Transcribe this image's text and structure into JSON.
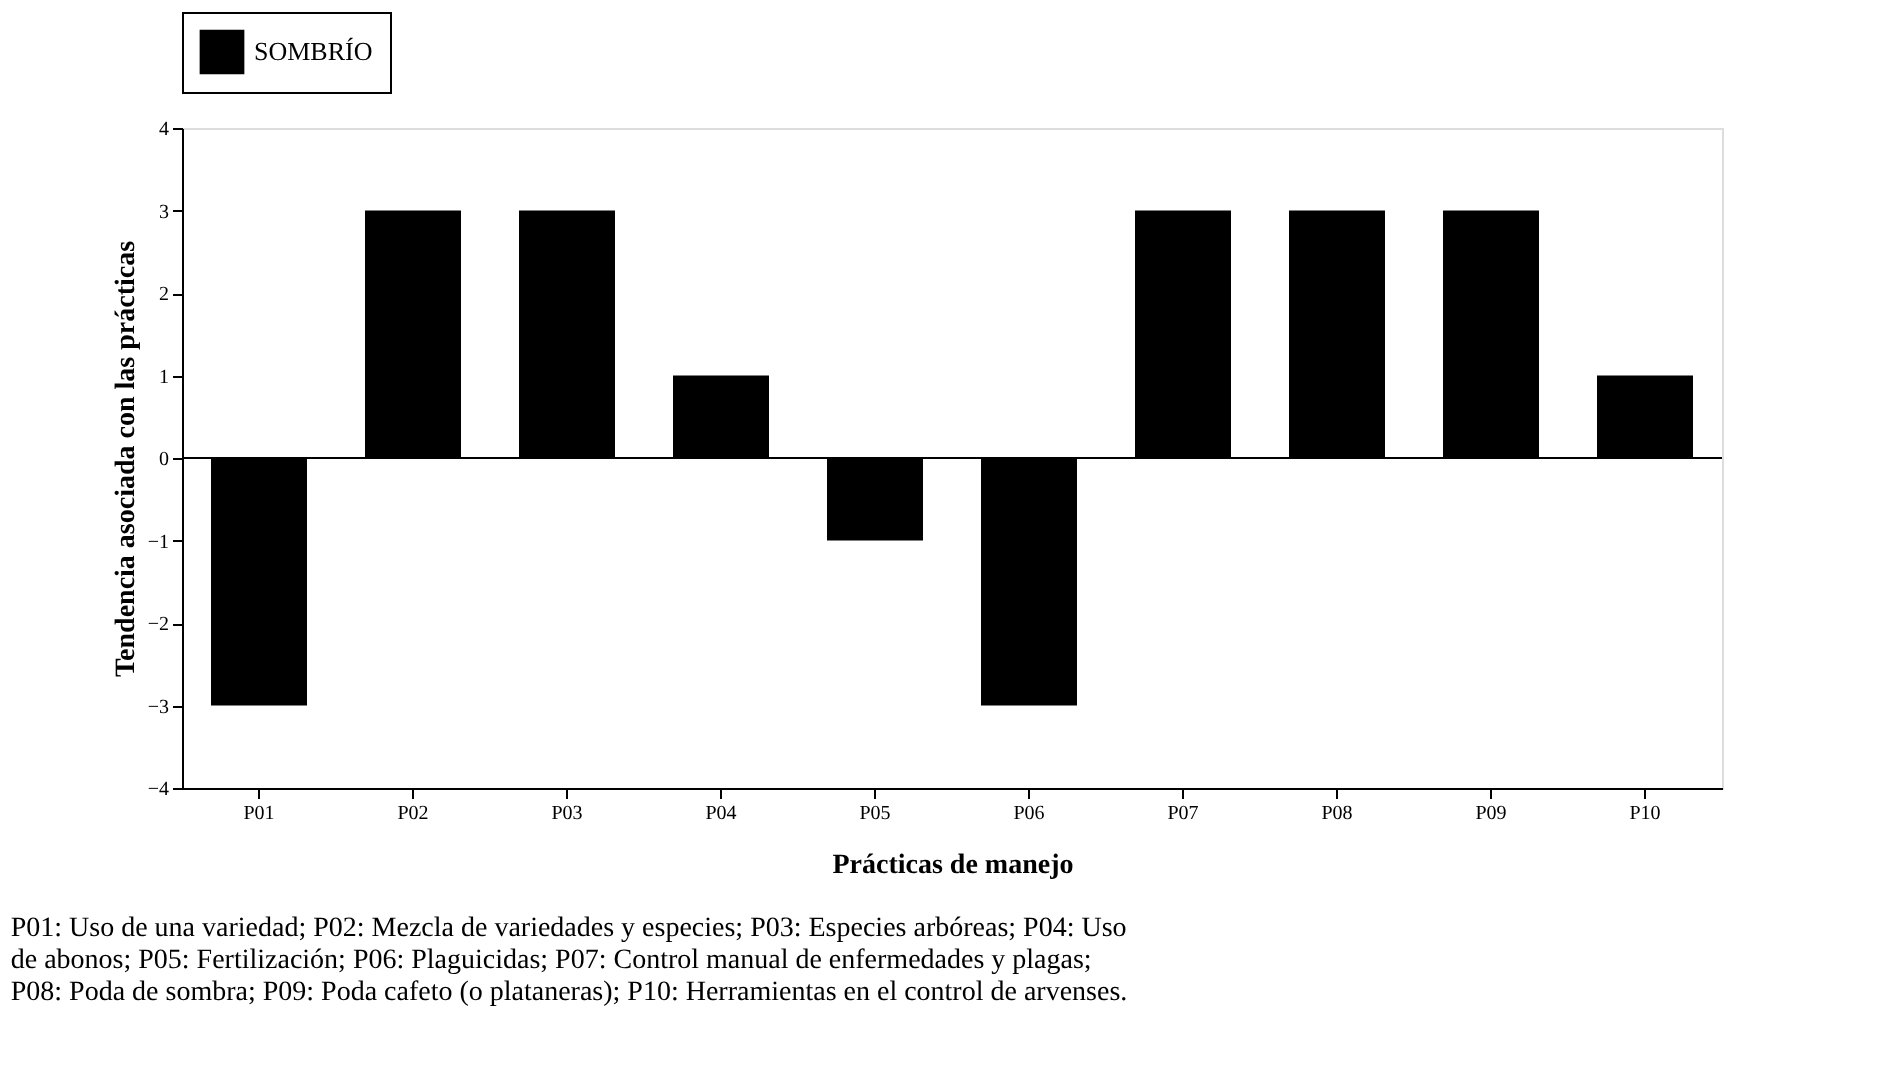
{
  "chart_data": {
    "type": "bar",
    "xlabel": "Prácticas de manejo",
    "ylabel": "Tendencia asociada con las prácticas",
    "categories": [
      "P01",
      "P02",
      "P03",
      "P04",
      "P05",
      "P06",
      "P07",
      "P08",
      "P09",
      "P10"
    ],
    "series": [
      {
        "name": "SOMBRÍO",
        "color": "#000000",
        "values": [
          -3,
          3,
          3,
          1,
          -1,
          -3,
          3,
          3,
          3,
          1
        ]
      }
    ],
    "ylim": [
      -4,
      4
    ],
    "yticks": [
      -4,
      -3,
      -2,
      -1,
      0,
      1,
      2,
      3,
      4
    ],
    "grid": false,
    "legend": "top",
    "ref_lines": [
      {
        "axis": "y",
        "value": 0,
        "color": "#000000"
      }
    ],
    "annotations": [
      "P01: Uso de una variedad; P02: Mezcla de variedades y especies; P03: Especies arbóreas; P04: Uso",
      "de abonos; P05: Fertilización; P06: Plaguicidas; P07: Control manual de enfermedades y plagas;",
      "P08: Poda de sombra; P09: Poda cafeto (o plataneras); P10: Herramientas en el control de arvenses."
    ]
  }
}
